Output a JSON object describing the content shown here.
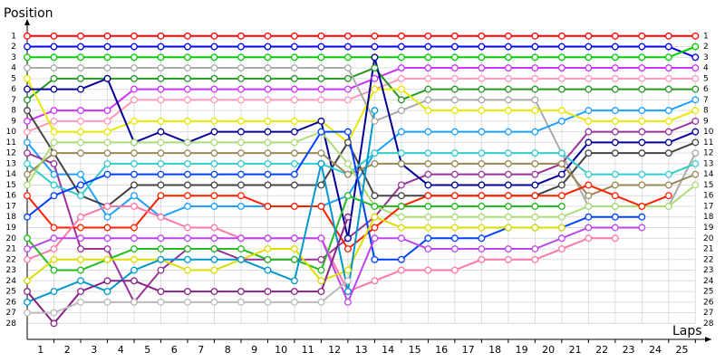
{
  "chart_data": {
    "type": "line",
    "y_label": "Position",
    "x_label": "Laps",
    "x": [
      0,
      1,
      2,
      3,
      4,
      5,
      6,
      7,
      8,
      9,
      10,
      11,
      12,
      13,
      14,
      15,
      16,
      17,
      18,
      19,
      20,
      21,
      22,
      23,
      24,
      25
    ],
    "xlim": [
      0,
      25.6
    ],
    "xticks": [
      1,
      2,
      3,
      4,
      5,
      6,
      7,
      8,
      9,
      10,
      11,
      12,
      13,
      14,
      15,
      16,
      17,
      18,
      19,
      20,
      21,
      22,
      23,
      24,
      25
    ],
    "ylim": [
      29.5,
      0
    ],
    "yticks": [
      1,
      2,
      3,
      4,
      5,
      6,
      7,
      8,
      9,
      10,
      11,
      12,
      13,
      14,
      15,
      16,
      17,
      18,
      19,
      20,
      21,
      22,
      23,
      24,
      25,
      26,
      27,
      28
    ],
    "grid": true,
    "series": [
      {
        "color": "#ff0000",
        "values": [
          1,
          1,
          1,
          1,
          1,
          1,
          1,
          1,
          1,
          1,
          1,
          1,
          1,
          1,
          1,
          1,
          1,
          1,
          1,
          1,
          1,
          1,
          1,
          1,
          1,
          1
        ]
      },
      {
        "color": "#0000ee",
        "values": [
          2,
          2,
          2,
          2,
          2,
          2,
          2,
          2,
          2,
          2,
          2,
          2,
          2,
          2,
          2,
          2,
          2,
          2,
          2,
          2,
          2,
          2,
          2,
          2,
          2,
          3
        ]
      },
      {
        "color": "#00cc00",
        "values": [
          3,
          3,
          3,
          3,
          3,
          3,
          3,
          3,
          3,
          3,
          3,
          3,
          3,
          3,
          3,
          3,
          3,
          3,
          3,
          3,
          3,
          3,
          3,
          3,
          3,
          2
        ]
      },
      {
        "color": "#cc33ff",
        "values": [
          9,
          8,
          8,
          8,
          6,
          6,
          6,
          6,
          6,
          6,
          6,
          6,
          6,
          5,
          4,
          4,
          4,
          4,
          4,
          4,
          4,
          4,
          4,
          4,
          4,
          4
        ]
      },
      {
        "color": "#ff99bb",
        "values": [
          10,
          9,
          9,
          9,
          7,
          7,
          7,
          7,
          7,
          7,
          7,
          7,
          7,
          6,
          5,
          5,
          5,
          5,
          5,
          5,
          5,
          5,
          5,
          5,
          5,
          5
        ]
      },
      {
        "color": "#229922",
        "values": [
          7,
          5,
          5,
          5,
          5,
          5,
          5,
          5,
          5,
          5,
          5,
          5,
          5,
          4,
          7,
          6,
          6,
          6,
          6,
          6,
          6,
          6,
          6,
          6,
          6,
          6
        ]
      },
      {
        "color": "#aaaaaa",
        "values": [
          4,
          4,
          4,
          4,
          4,
          4,
          4,
          4,
          4,
          4,
          4,
          4,
          4,
          9,
          8,
          7,
          7,
          7,
          7,
          7,
          12,
          17,
          17,
          17,
          17,
          12
        ]
      },
      {
        "color": "#1ea0ff",
        "values": [
          11,
          14,
          14,
          18,
          16,
          18,
          17,
          17,
          17,
          17,
          17,
          17,
          16,
          12,
          10,
          10,
          10,
          10,
          10,
          10,
          9,
          8,
          8,
          8,
          8,
          7
        ]
      },
      {
        "color": "#e8e800",
        "values": [
          5,
          10,
          10,
          10,
          9,
          9,
          9,
          9,
          9,
          9,
          9,
          9,
          11,
          6,
          6,
          8,
          8,
          8,
          8,
          8,
          8,
          9,
          9,
          9,
          9,
          8
        ]
      },
      {
        "color": "#993399",
        "values": [
          12,
          13,
          21,
          21,
          26,
          23,
          21,
          21,
          22,
          22,
          22,
          22,
          20,
          18,
          15,
          14,
          14,
          14,
          14,
          14,
          13,
          10,
          10,
          10,
          10,
          9
        ]
      },
      {
        "color": "#000099",
        "values": [
          6,
          6,
          6,
          5,
          11,
          10,
          11,
          10,
          10,
          10,
          10,
          9,
          20,
          3,
          13,
          15,
          15,
          15,
          15,
          15,
          14,
          11,
          11,
          11,
          11,
          10
        ]
      },
      {
        "color": "#444444",
        "values": [
          8,
          12,
          16,
          17,
          15,
          15,
          15,
          15,
          15,
          15,
          15,
          15,
          11,
          16,
          16,
          16,
          16,
          16,
          16,
          16,
          15,
          12,
          12,
          12,
          12,
          11
        ]
      },
      {
        "color": "#33cccc",
        "values": [
          13,
          15,
          16,
          13,
          13,
          13,
          13,
          13,
          13,
          13,
          13,
          13,
          14,
          12,
          12,
          12,
          12,
          12,
          12,
          12,
          12,
          14,
          14,
          14,
          14,
          13
        ]
      },
      {
        "color": "#998855",
        "values": [
          14,
          12,
          12,
          12,
          12,
          12,
          12,
          12,
          12,
          12,
          12,
          12,
          14,
          13,
          13,
          13,
          13,
          13,
          13,
          13,
          13,
          16,
          15,
          15,
          15,
          14
        ]
      },
      {
        "color": "#aadd77",
        "values": [
          15,
          11,
          11,
          11,
          11,
          11,
          11,
          11,
          11,
          11,
          11,
          10,
          13,
          17,
          18,
          18,
          18,
          18,
          18,
          18,
          18,
          17,
          17,
          17,
          17,
          15
        ]
      },
      {
        "color": "#ff2000",
        "values": [
          16,
          19,
          19,
          19,
          19,
          16,
          16,
          16,
          16,
          17,
          17,
          17,
          21,
          19,
          17,
          16,
          16,
          16,
          16,
          16,
          16,
          15,
          16,
          17,
          16,
          null
        ]
      },
      {
        "color": "#0040ff",
        "values": [
          18,
          16,
          15,
          14,
          14,
          14,
          14,
          14,
          14,
          14,
          14,
          10,
          10,
          22,
          22,
          20,
          20,
          20,
          19,
          19,
          19,
          18,
          18,
          18,
          null,
          null
        ]
      },
      {
        "color": "#ff77aa",
        "values": [
          22,
          21,
          18,
          17,
          17,
          18,
          19,
          19,
          20,
          20,
          20,
          20,
          25,
          24,
          23,
          23,
          23,
          22,
          22,
          22,
          21,
          20,
          20,
          null,
          null,
          null
        ]
      },
      {
        "color": "#22bb22",
        "values": [
          20,
          23,
          23,
          22,
          21,
          21,
          21,
          21,
          21,
          22,
          22,
          23,
          16,
          17,
          17,
          17,
          17,
          17,
          17,
          17,
          17,
          null,
          null,
          null,
          null,
          null
        ]
      },
      {
        "color": "#bb44ee",
        "values": [
          21,
          20,
          20,
          20,
          20,
          20,
          20,
          20,
          20,
          20,
          20,
          20,
          26,
          20,
          20,
          21,
          21,
          21,
          21,
          21,
          20,
          19,
          19,
          19,
          null,
          null
        ]
      },
      {
        "color": "#dddd00",
        "values": [
          24,
          22,
          22,
          22,
          22,
          22,
          23,
          23,
          22,
          21,
          21,
          24,
          23,
          18,
          19,
          19,
          19,
          19,
          19,
          19,
          19,
          null,
          null,
          null,
          null,
          null
        ]
      },
      {
        "color": "#0099cc",
        "values": [
          26,
          25,
          24,
          25,
          23,
          22,
          22,
          22,
          22,
          23,
          24,
          13,
          25,
          8,
          null,
          null,
          null,
          null,
          null,
          null,
          null,
          null,
          null,
          null,
          null,
          null
        ]
      },
      {
        "color": "#882288",
        "values": [
          25,
          28,
          25,
          24,
          24,
          25,
          25,
          25,
          25,
          25,
          25,
          25,
          18,
          null,
          null,
          null,
          null,
          null,
          null,
          null,
          null,
          null,
          null,
          null,
          null,
          null
        ]
      },
      {
        "color": "#bbbbbb",
        "values": [
          27,
          27,
          26,
          26,
          26,
          26,
          26,
          26,
          26,
          26,
          26,
          26,
          24,
          null,
          null,
          null,
          null,
          null,
          null,
          null,
          null,
          null,
          null,
          null,
          null,
          null
        ]
      }
    ]
  }
}
